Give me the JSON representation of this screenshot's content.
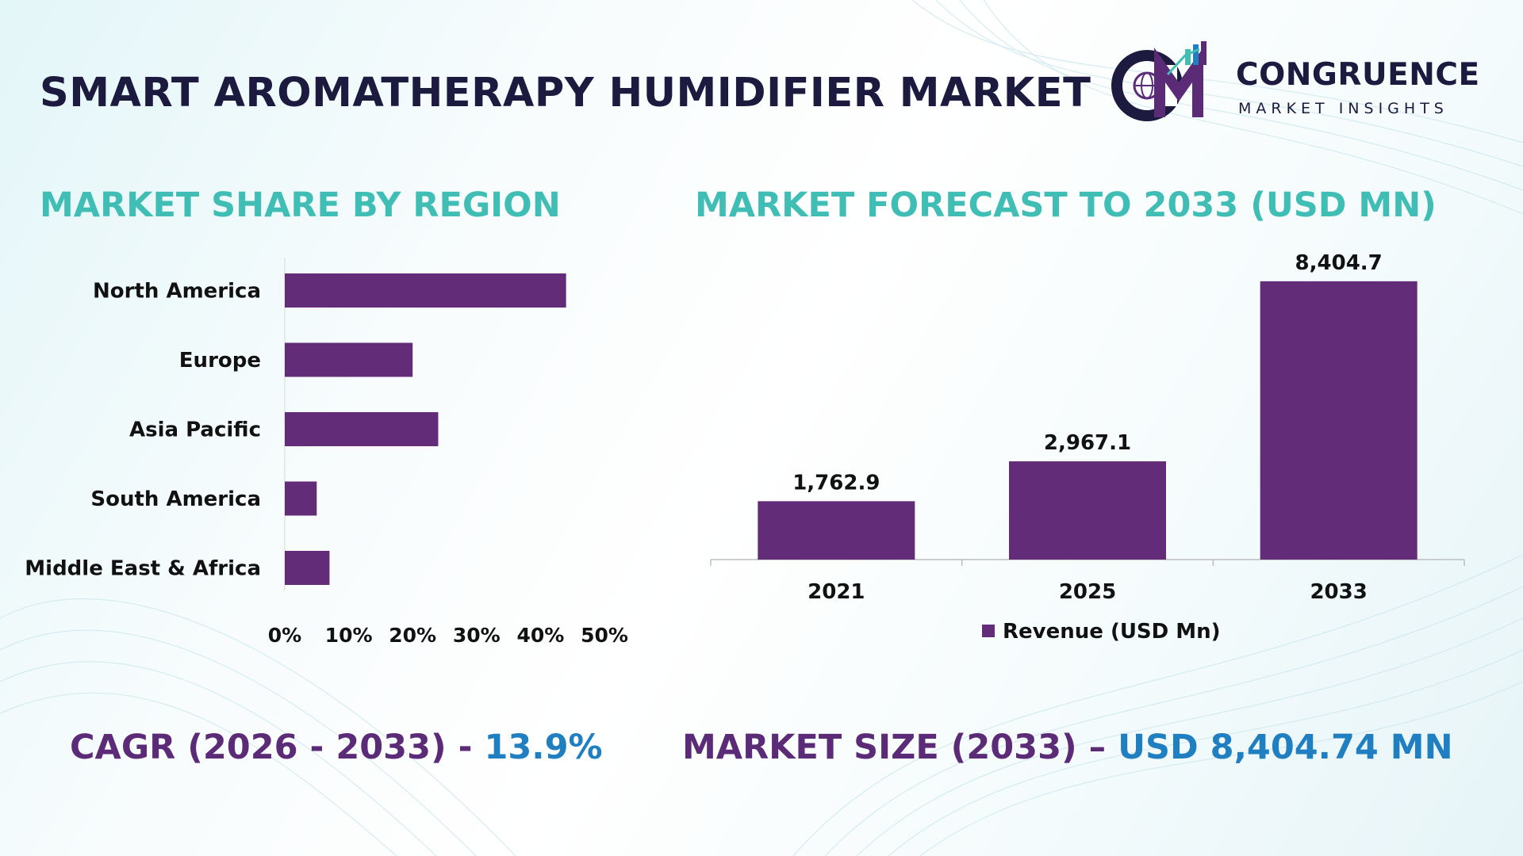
{
  "header": {
    "title": "SMART AROMATHERAPY HUMIDIFIER MARKET",
    "logo": {
      "name": "CONGRUENCE",
      "subtitle": "MARKET INSIGHTS",
      "icon": "cmi-logo-icon"
    }
  },
  "left_chart": {
    "title": "MARKET SHARE BY REGION"
  },
  "right_chart": {
    "title": "MARKET FORECAST TO 2033 (USD MN)"
  },
  "footer": {
    "cagr_label": "CAGR (2026 - 2033) - ",
    "cagr_value": "13.9%",
    "size_label": "MARKET SIZE (2033) – ",
    "size_value": "USD 8,404.74 MN"
  },
  "colors": {
    "bar": "#632c79",
    "section_title": "#40beb5",
    "title": "#1c1a3f",
    "accent_blue": "#1f7fc1",
    "accent_purple": "#5b2b78"
  },
  "chart_data": [
    {
      "type": "bar",
      "orientation": "horizontal",
      "title": "MARKET SHARE BY REGION",
      "categories": [
        "North America",
        "Europe",
        "Asia Pacific",
        "South America",
        "Middle East & Africa"
      ],
      "values": [
        44,
        20,
        24,
        5,
        7
      ],
      "xlim": [
        0,
        50
      ],
      "xticks": [
        "0%",
        "10%",
        "20%",
        "30%",
        "40%",
        "50%"
      ],
      "grid": false
    },
    {
      "type": "bar",
      "title": "MARKET FORECAST TO 2033 (USD MN)",
      "categories": [
        "2021",
        "2025",
        "2033"
      ],
      "series": [
        {
          "name": "Revenue (USD Mn)",
          "values": [
            1762.9,
            2967.1,
            8404.7
          ]
        }
      ],
      "data_labels": [
        "1,762.9",
        "2,967.1",
        "8,404.7"
      ],
      "ylim": [
        0,
        9000
      ],
      "legend": "bottom",
      "grid": false
    }
  ]
}
